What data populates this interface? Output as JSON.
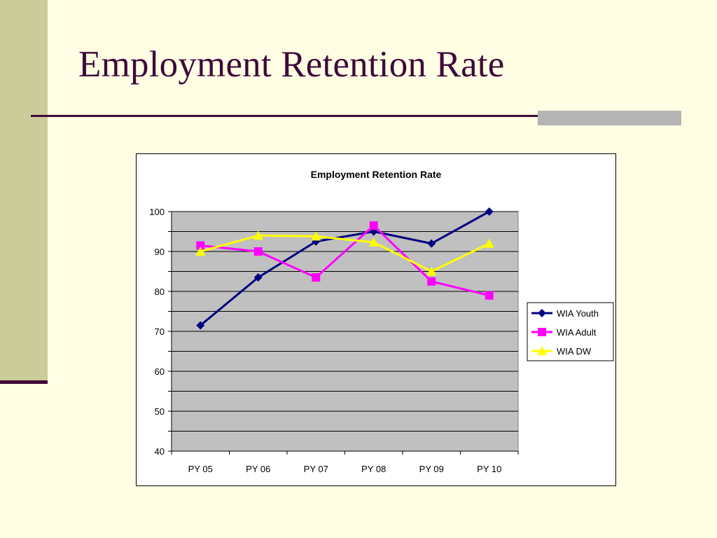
{
  "slide": {
    "title": "Employment Retention Rate"
  },
  "colors": {
    "background": "#FFFDE3",
    "accent": "#3E0A3A",
    "side_band": "#CCCB9A",
    "plot_area": "#C0C0C0"
  },
  "chart_data": {
    "type": "line",
    "title": "Employment Retention Rate",
    "xlabel": "",
    "ylabel": "",
    "categories": [
      "PY 05",
      "PY 06",
      "PY 07",
      "PY 08",
      "PY 09",
      "PY 10"
    ],
    "ylim": [
      40,
      100
    ],
    "yticks": [
      40,
      50,
      60,
      70,
      80,
      90,
      100
    ],
    "grid": true,
    "legend_position": "right",
    "series": [
      {
        "name": "WIA Youth",
        "color": "#000080",
        "marker": "diamond",
        "values": [
          71.5,
          83.5,
          92.5,
          95,
          92,
          100
        ]
      },
      {
        "name": "WIA Adult",
        "color": "#FF00FF",
        "marker": "square",
        "values": [
          91.5,
          90,
          83.5,
          96.5,
          82.5,
          79
        ]
      },
      {
        "name": "WIA DW",
        "color": "#FFFF00",
        "marker": "triangle",
        "values": [
          90,
          94,
          93.8,
          92.3,
          85,
          92
        ]
      }
    ]
  }
}
